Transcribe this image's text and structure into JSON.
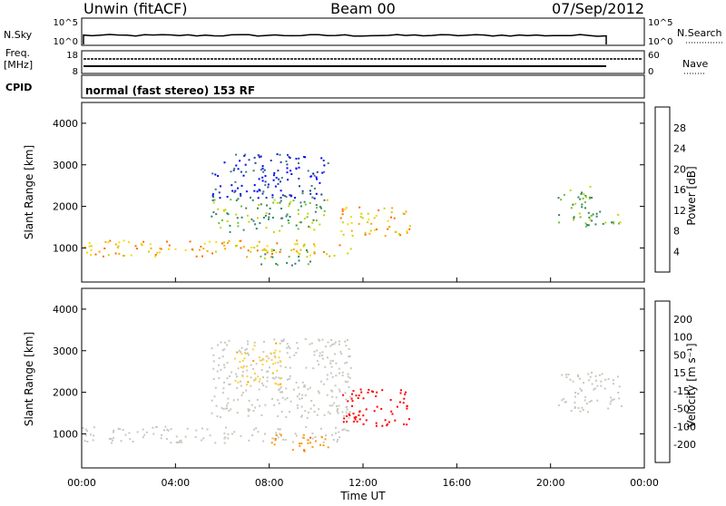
{
  "header": {
    "station": "Unwin (fitACF)",
    "beam": "Beam 00",
    "date": "07/Sep/2012"
  },
  "strip_labels": {
    "nsky": "N.Sky",
    "nsky_top": "10^5",
    "nsky_bottom": "10^0",
    "nsearch": "N.Search",
    "nsearch_top": "10^5",
    "nsearch_bottom": "10^0",
    "freq": "Freq.",
    "freq_unit": "[MHz]",
    "freq_top": "18",
    "freq_bottom": "8",
    "nave": "Nave",
    "nave_top": "60",
    "nave_bottom": "0",
    "cpid": "CPID",
    "cpid_text": "normal (fast stereo) 153 RF"
  },
  "colors": {
    "power_scale": [
      "#0000ff",
      "#2040a0",
      "#3d7a7a",
      "#2e8b57",
      "#6bbf3e",
      "#c8d400",
      "#ffd700",
      "#ffa500",
      "#ff6a00",
      "#ff2000",
      "#ff0000"
    ],
    "velocity_scale": [
      "#2020c0",
      "#2c5aa0",
      "#2e8b57",
      "#66c43a",
      "#c8c8c0",
      "#ffd040",
      "#ff9900",
      "#ff5500",
      "#ff0000"
    ]
  },
  "chart_data": [
    {
      "type": "heatmap",
      "panel": "power",
      "ylabel": "Slant Range [km]",
      "ylim": [
        180,
        4500
      ],
      "yticks": [
        "1000",
        "2000",
        "3000",
        "4000"
      ],
      "xlim": [
        0,
        24
      ],
      "colorbar_label": "Power [dB]",
      "colorbar_ticks": [
        "4",
        "8",
        "12",
        "16",
        "20",
        "24",
        "28"
      ],
      "regions": [
        {
          "t0": 0.0,
          "t1": 11.5,
          "r0": 800,
          "r1": 1200,
          "level": "strong"
        },
        {
          "t0": 5.5,
          "t1": 10.5,
          "r0": 1400,
          "r1": 2200,
          "level": "medium"
        },
        {
          "t0": 5.5,
          "t1": 10.5,
          "r0": 2200,
          "r1": 3300,
          "level": "weak"
        },
        {
          "t0": 7.5,
          "t1": 9.8,
          "r0": 600,
          "r1": 1000,
          "level": "medium"
        },
        {
          "t0": 11.0,
          "t1": 14.0,
          "r0": 1300,
          "r1": 2000,
          "level": "strong"
        },
        {
          "t0": 20.3,
          "t1": 21.8,
          "r0": 1500,
          "r1": 2500,
          "level": "medium"
        },
        {
          "t0": 21.5,
          "t1": 23.0,
          "r0": 1500,
          "r1": 1900,
          "level": "medium"
        }
      ]
    },
    {
      "type": "heatmap",
      "panel": "velocity",
      "ylabel": "Slant Range [km]",
      "ylim": [
        180,
        4500
      ],
      "yticks": [
        "1000",
        "2000",
        "3000",
        "4000"
      ],
      "xlim": [
        0,
        24
      ],
      "xticks": [
        "00:00",
        "04:00",
        "08:00",
        "12:00",
        "16:00",
        "20:00",
        "00:00"
      ],
      "xlabel": "Time UT",
      "colorbar_label": "Velocity [m s⁻¹]",
      "colorbar_ticks": [
        "200",
        "100",
        "50",
        "15",
        "-15",
        "-50",
        "-100",
        "-200"
      ],
      "regions": [
        {
          "t0": 0.0,
          "t1": 11.5,
          "r0": 800,
          "r1": 1200,
          "vel": 0
        },
        {
          "t0": 5.5,
          "t1": 11.5,
          "r0": 1400,
          "r1": 3300,
          "vel": 0
        },
        {
          "t0": 6.5,
          "t1": 8.5,
          "r0": 2200,
          "r1": 3200,
          "vel": -40
        },
        {
          "t0": 8.0,
          "t1": 10.5,
          "r0": 600,
          "r1": 1000,
          "vel": -90
        },
        {
          "t0": 11.0,
          "t1": 14.0,
          "r0": 1200,
          "r1": 2100,
          "vel": -250
        },
        {
          "t0": 20.3,
          "t1": 23.0,
          "r0": 1500,
          "r1": 2500,
          "vel": 0
        }
      ]
    }
  ]
}
